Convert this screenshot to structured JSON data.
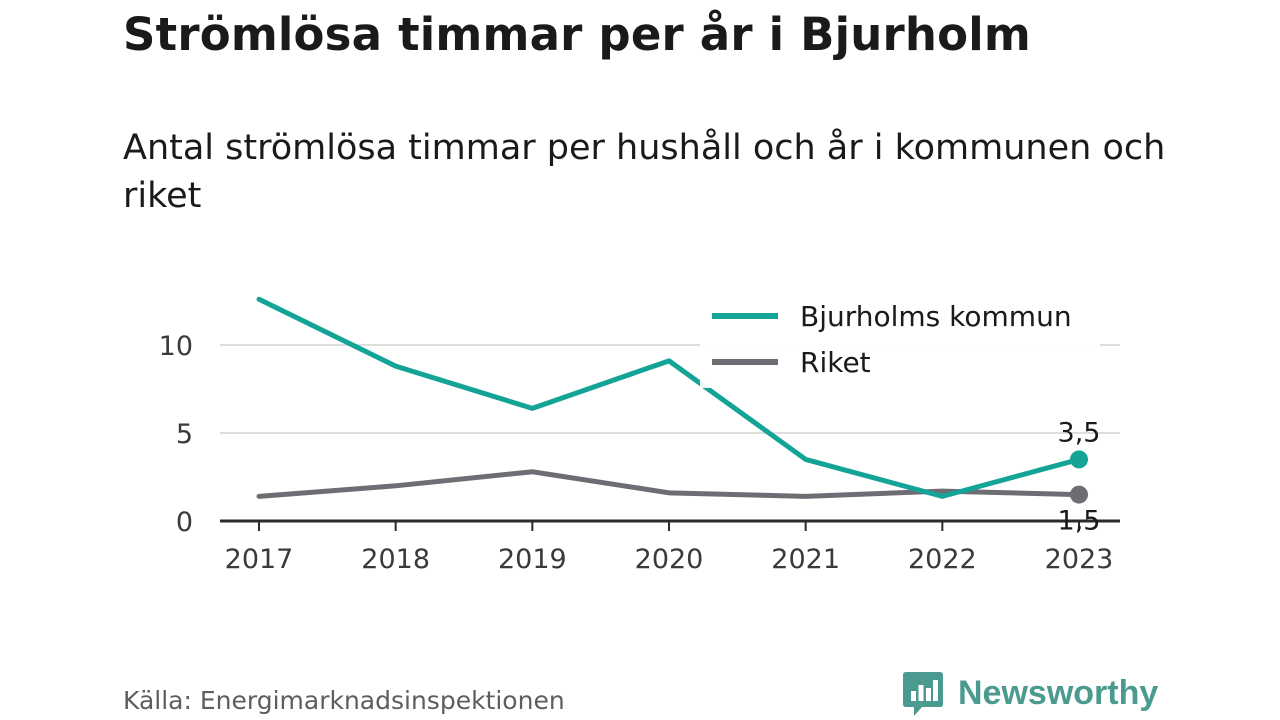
{
  "title": "Strömlösa timmar per år i Bjurholm",
  "subtitle": "Antal strömlösa timmar per hushåll och år i kommunen och riket",
  "source": "Källa: Energimarknadsinspektionen",
  "brand": {
    "name": "Newsworthy",
    "icon": "newsworthy-logo-icon",
    "color": "#4a9a8f"
  },
  "chart_data": {
    "type": "line",
    "x": [
      "2017",
      "2018",
      "2019",
      "2020",
      "2021",
      "2022",
      "2023"
    ],
    "ylim": [
      0,
      13
    ],
    "yticks": [
      0,
      5,
      10
    ],
    "grid": true,
    "legend_position": "top-right",
    "series": [
      {
        "name": "Bjurholms kommun",
        "color": "#13a497",
        "values": [
          12.6,
          8.8,
          6.4,
          9.1,
          3.5,
          1.4,
          3.5
        ]
      },
      {
        "name": "Riket",
        "color": "#6e6d73",
        "values": [
          1.4,
          2.0,
          2.8,
          1.6,
          1.4,
          1.7,
          1.5
        ]
      }
    ],
    "end_labels": [
      "3,5",
      "1,5"
    ]
  }
}
